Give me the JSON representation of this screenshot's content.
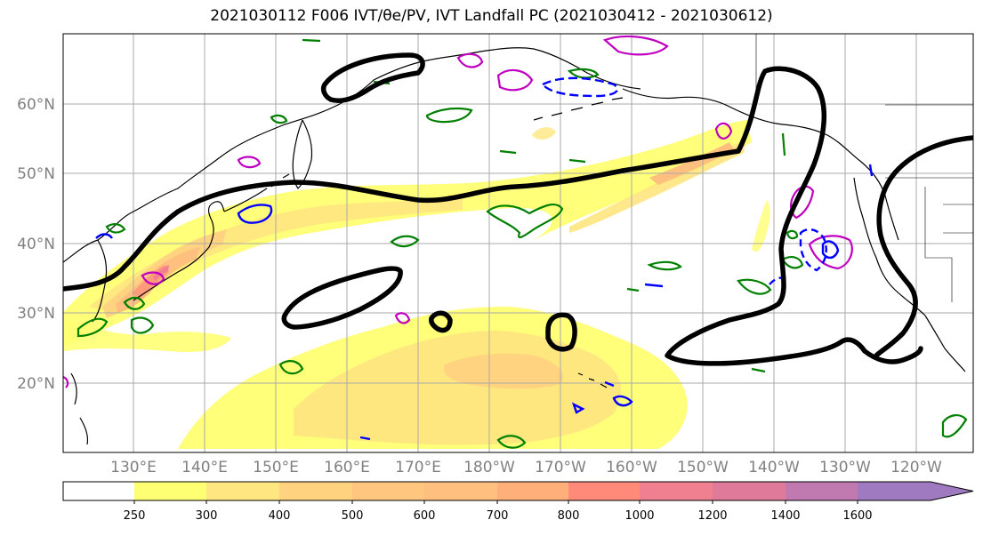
{
  "title": "2021030112 F006 IVT/θe/PV, IVT Landfall PC (2021030412 - 2021030612)",
  "map": {
    "projection": "PlateCarree",
    "lon_range_east": [
      120,
      245
    ],
    "lat_range": [
      10,
      70
    ],
    "lat_labels": [
      "20°N",
      "30°N",
      "40°N",
      "50°N",
      "60°N"
    ],
    "lon_labels": [
      "130°E",
      "140°E",
      "150°E",
      "160°E",
      "170°E",
      "180°W",
      "170°W",
      "160°W",
      "150°W",
      "140°W",
      "130°W",
      "120°W"
    ],
    "fill_colors": {
      "ivt_250": "#ffff73",
      "ivt_300": "#ffe680",
      "ivt_400": "#ffd27f",
      "ivt_500": "#ffbf7f",
      "ivt_700": "#ff9a7a",
      "ivt_1000": "#f08090"
    },
    "contour_colors": {
      "landfall_pc": "#000000",
      "pv": "#008000",
      "theta_e_pos": "#c000c0",
      "theta_e_neg": "#0000ff"
    }
  },
  "colorbar": {
    "ticks": [
      "250",
      "300",
      "400",
      "500",
      "600",
      "700",
      "800",
      "1000",
      "1200",
      "1400",
      "1600"
    ],
    "colors": [
      "#ffffff",
      "#ffff73",
      "#ffe680",
      "#ffd27f",
      "#ffc67f",
      "#ffbf7f",
      "#ffb07a",
      "#ff8a7a",
      "#f08090",
      "#e07a9a",
      "#c07ab0",
      "#a07ac0"
    ]
  }
}
